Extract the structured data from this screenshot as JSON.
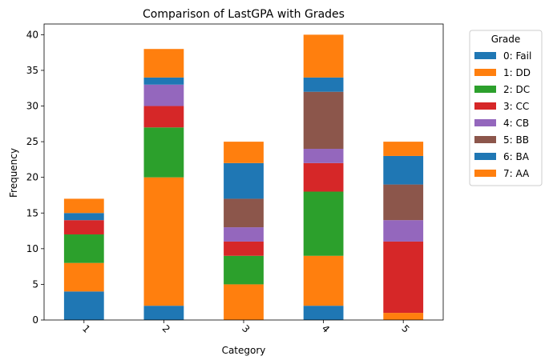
{
  "chart_data": {
    "type": "bar",
    "stacked": true,
    "title": "Comparison of LastGPA with Grades",
    "xlabel": "Category",
    "ylabel": "Frequency",
    "categories": [
      "1",
      "2",
      "3",
      "4",
      "5"
    ],
    "ylim": [
      0,
      41.5
    ],
    "yticks": [
      0,
      5,
      10,
      15,
      20,
      25,
      30,
      35,
      40
    ],
    "grid": false,
    "legend": {
      "title": "Grade",
      "placement": "outside-right-top"
    },
    "series": [
      {
        "name": "0: Fail",
        "color": "#1f77b4",
        "values": [
          4,
          2,
          0,
          2,
          0
        ]
      },
      {
        "name": "1: DD",
        "color": "#ff7f0e",
        "values": [
          4,
          18,
          5,
          7,
          1
        ]
      },
      {
        "name": "2: DC",
        "color": "#2ca02c",
        "values": [
          4,
          7,
          4,
          9,
          0
        ]
      },
      {
        "name": "3: CC",
        "color": "#d62728",
        "values": [
          2,
          3,
          2,
          4,
          10
        ]
      },
      {
        "name": "4: CB",
        "color": "#9467bd",
        "values": [
          0,
          3,
          2,
          2,
          3
        ]
      },
      {
        "name": "5: BB",
        "color": "#8c564b",
        "values": [
          0,
          0,
          4,
          8,
          5
        ]
      },
      {
        "name": "6: BA",
        "color": "#1f77b4",
        "values": [
          1,
          1,
          5,
          2,
          4
        ]
      },
      {
        "name": "7: AA",
        "color": "#ff7f0e",
        "values": [
          2,
          4,
          3,
          6,
          2
        ]
      }
    ]
  }
}
